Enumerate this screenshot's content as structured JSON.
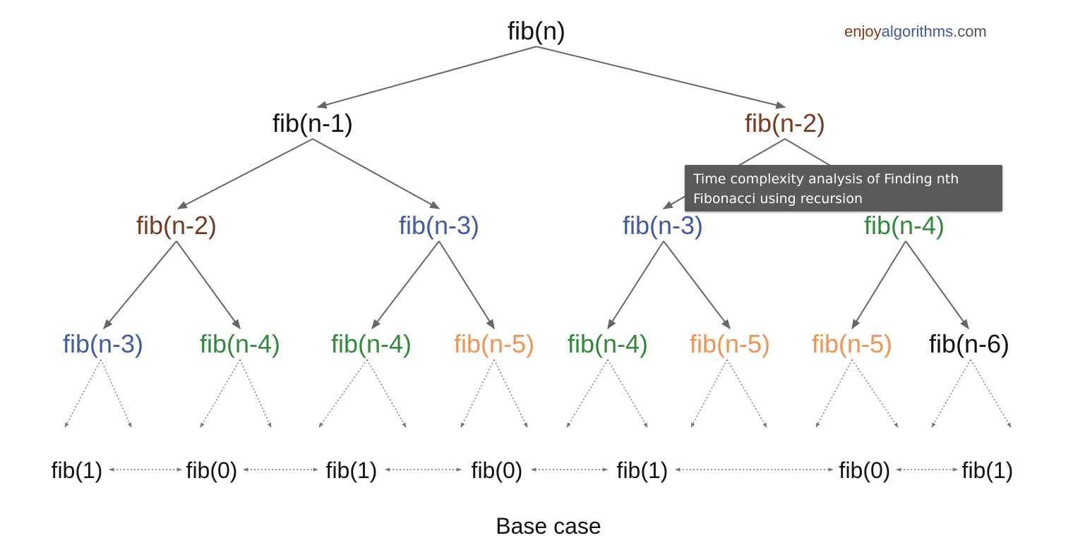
{
  "logo": {
    "part1": "enjoy",
    "part2": "algorithms",
    "part3": ".com"
  },
  "colors": {
    "black": "#111111",
    "brown": "#7a3a1e",
    "blue": "#3f5aa6",
    "green": "#2f8a3a",
    "orange": "#f2934f",
    "logo_brown": "#8a3a12",
    "logo_blue": "#3f5aa6",
    "logo_gray": "#555555"
  },
  "tree": {
    "root": {
      "label": "fib(n)",
      "color": "black"
    },
    "level1": [
      {
        "label": "fib(n-1)",
        "color": "black"
      },
      {
        "label": "fib(n-2)",
        "color": "brown"
      }
    ],
    "level2": [
      {
        "label": "fib(n-2)",
        "color": "brown"
      },
      {
        "label": "fib(n-3)",
        "color": "blue"
      },
      {
        "label": "fib(n-3)",
        "color": "blue"
      },
      {
        "label": "fib(n-4)",
        "color": "green"
      }
    ],
    "level3": [
      {
        "label": "fib(n-3)",
        "color": "blue"
      },
      {
        "label": "fib(n-4)",
        "color": "green"
      },
      {
        "label": "fib(n-4)",
        "color": "green"
      },
      {
        "label": "fib(n-5)",
        "color": "orange"
      },
      {
        "label": "fib(n-4)",
        "color": "green"
      },
      {
        "label": "fib(n-5)",
        "color": "orange"
      },
      {
        "label": "fib(n-5)",
        "color": "orange"
      },
      {
        "label": "fib(n-6)",
        "color": "black"
      }
    ]
  },
  "base_cases": [
    "fib(1)",
    "fib(0)",
    "fib(1)",
    "fib(0)",
    "fib(1)",
    "fib(0)",
    "fib(1)"
  ],
  "caption": "Base case",
  "tooltip": "Time complexity analysis of Finding nth Fibonacci using recursion"
}
